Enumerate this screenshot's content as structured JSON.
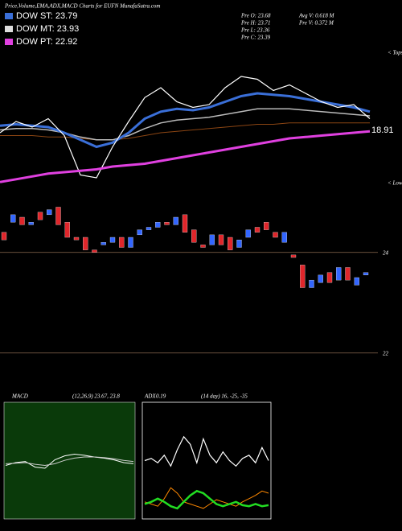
{
  "header": {
    "title": "Price,Volume,EMA,ADX,MACD Charts for EUFN  MunafaSutra.com"
  },
  "legend": [
    {
      "label": "DOW ST: 23.79",
      "color": "#3a6fd8"
    },
    {
      "label": "DOW MT: 23.93",
      "color": "#dddddd"
    },
    {
      "label": "DOW PT: 22.92",
      "color": "#e040e0"
    }
  ],
  "info": [
    "Pre  O: 23.68",
    "Pre  H: 23.71",
    "Pre  L: 23.36",
    "Pre  C: 23.39",
    "Avg  V: 0.618  M",
    "Pre  V: 0.372  M"
  ],
  "chart_data": [
    {
      "type": "line",
      "tops": "< Tops",
      "lows": "< Lows",
      "annotation": "18.91",
      "ylim": [
        0,
        100
      ],
      "series": [
        {
          "color": "#8b4513",
          "width": 1,
          "values": [
            38,
            38,
            38,
            37,
            37,
            36,
            35,
            35,
            36,
            38,
            40,
            41,
            42,
            43,
            44,
            45,
            46,
            46,
            47,
            47,
            47,
            47,
            47,
            47
          ]
        },
        {
          "color": "#bbbbbb",
          "width": 1.5,
          "values": [
            42,
            43,
            43,
            42,
            40,
            37,
            35,
            35,
            38,
            43,
            47,
            49,
            50,
            51,
            53,
            55,
            57,
            57,
            57,
            56,
            55,
            54,
            53,
            52
          ]
        },
        {
          "color": "#3a6fd8",
          "width": 3,
          "values": [
            45,
            46,
            45,
            44,
            40,
            35,
            30,
            33,
            40,
            50,
            55,
            57,
            56,
            58,
            62,
            66,
            68,
            67,
            66,
            64,
            62,
            60,
            58,
            55
          ]
        },
        {
          "color": "#ffffff",
          "width": 1.2,
          "values": [
            40,
            48,
            44,
            50,
            38,
            10,
            8,
            30,
            48,
            65,
            72,
            62,
            58,
            60,
            72,
            80,
            78,
            70,
            74,
            68,
            62,
            58,
            60,
            50
          ]
        },
        {
          "color": "#e040e0",
          "width": 3,
          "values": [
            5,
            7,
            9,
            11,
            12,
            13,
            14,
            16,
            17,
            18,
            20,
            22,
            24,
            26,
            28,
            30,
            32,
            34,
            36,
            37,
            38,
            39,
            40,
            41
          ]
        }
      ]
    },
    {
      "type": "candlestick",
      "up_color": "#3366ff",
      "down_color": "#e0262b",
      "ylim": [
        21.9,
        25.1
      ],
      "yticks": [
        22,
        24
      ],
      "open": [
        24.4,
        24.6,
        24.7,
        24.55,
        24.8,
        24.75,
        24.9,
        24.6,
        24.3,
        24.3,
        24.05,
        24.15,
        24.2,
        24.3,
        24.1,
        24.35,
        24.45,
        24.5,
        24.6,
        24.55,
        24.75,
        24.45,
        24.15,
        24.15,
        24.35,
        24.3,
        24.1,
        24.3,
        24.5,
        24.6,
        24.4,
        24.2,
        23.95,
        23.75,
        23.3,
        23.4,
        23.6,
        23.45,
        23.7,
        23.35,
        23.55
      ],
      "close": [
        24.25,
        24.75,
        24.55,
        24.6,
        24.65,
        24.85,
        24.55,
        24.3,
        24.25,
        24.05,
        24.0,
        24.2,
        24.3,
        24.1,
        24.3,
        24.45,
        24.5,
        24.6,
        24.55,
        24.7,
        24.4,
        24.2,
        24.1,
        24.35,
        24.15,
        24.05,
        24.25,
        24.45,
        24.4,
        24.45,
        24.3,
        24.4,
        23.9,
        23.3,
        23.45,
        23.55,
        23.4,
        23.7,
        23.45,
        23.5,
        23.6
      ]
    },
    {
      "type": "line",
      "title": "MACD",
      "subtitle": "(12,26,9) 23.67, 23.8",
      "ylim": [
        -1,
        1
      ],
      "series": [
        {
          "color": "#ffffff",
          "width": 1,
          "values": [
            -0.05,
            0,
            0.02,
            -0.08,
            -0.1,
            0.05,
            0.12,
            0.15,
            0.13,
            0.1,
            0.08,
            0.05,
            0.0,
            -0.02
          ]
        },
        {
          "color": "#cccccc",
          "width": 1,
          "values": [
            -0.02,
            -0.01,
            0,
            -0.03,
            -0.05,
            -0.02,
            0.04,
            0.08,
            0.1,
            0.1,
            0.09,
            0.07,
            0.04,
            0.02
          ]
        }
      ]
    },
    {
      "type": "line",
      "title": "ADX",
      "annotation": "0.19",
      "subtitle": "(14 day) 16, -25, -35",
      "ylim": [
        0,
        100
      ],
      "series": [
        {
          "color": "#ffffff",
          "width": 1.2,
          "values": [
            50,
            52,
            48,
            55,
            45,
            60,
            72,
            65,
            48,
            70,
            55,
            48,
            58,
            50,
            45,
            52,
            55,
            48,
            62,
            50
          ]
        },
        {
          "color": "#ff8800",
          "width": 1,
          "values": [
            12,
            10,
            8,
            15,
            25,
            20,
            12,
            10,
            8,
            6,
            10,
            14,
            12,
            10,
            8,
            12,
            15,
            18,
            22,
            20
          ]
        },
        {
          "color": "#22dd22",
          "width": 2.5,
          "values": [
            10,
            12,
            15,
            12,
            8,
            6,
            12,
            18,
            22,
            20,
            15,
            10,
            8,
            10,
            12,
            9,
            8,
            10,
            8,
            9
          ]
        }
      ]
    }
  ]
}
